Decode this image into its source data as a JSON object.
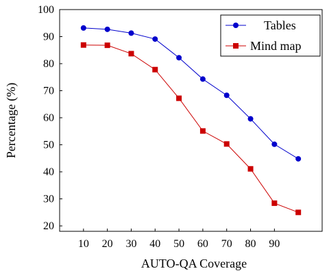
{
  "chart_data": {
    "type": "line",
    "title": "",
    "xlabel": "AUTO-QA Coverage",
    "ylabel": "Percentage (%)",
    "x": [
      10,
      20,
      30,
      40,
      50,
      60,
      70,
      80,
      90,
      100
    ],
    "x_tick_labels": [
      "10",
      "20",
      "30",
      "40",
      "50",
      "60",
      "70",
      "80",
      "90"
    ],
    "y_tick_labels": [
      "20",
      "30",
      "40",
      "50",
      "60",
      "70",
      "80",
      "90",
      "100"
    ],
    "xlim": [
      0,
      110
    ],
    "ylim": [
      18,
      100
    ],
    "grid": false,
    "legend_position": "top-right",
    "series": [
      {
        "name": "Tables",
        "color": "#0000cc",
        "marker": "circle",
        "values": [
          93.2,
          92.7,
          91.3,
          89.1,
          82.2,
          74.3,
          68.3,
          59.6,
          50.2,
          44.8
        ]
      },
      {
        "name": "Mind map",
        "color": "#cc0000",
        "marker": "square",
        "values": [
          86.9,
          86.8,
          83.7,
          77.8,
          67.2,
          55.1,
          50.3,
          41.1,
          28.4,
          25.0
        ]
      }
    ]
  }
}
